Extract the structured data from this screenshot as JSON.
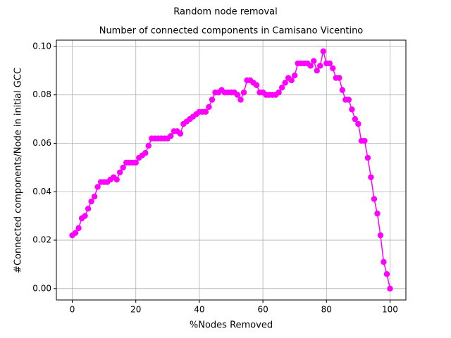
{
  "chart_data": {
    "type": "line",
    "suptitle": "Random node removal",
    "title": "Number of connected components in Camisano Vicentino",
    "xlabel": "%Nodes Removed",
    "ylabel": "#Connected components/Node in initial GCC",
    "x": [
      0,
      1,
      2,
      3,
      4,
      5,
      6,
      7,
      8,
      9,
      10,
      11,
      12,
      13,
      14,
      15,
      16,
      17,
      18,
      19,
      20,
      21,
      22,
      23,
      24,
      25,
      26,
      27,
      28,
      29,
      30,
      31,
      32,
      33,
      34,
      35,
      36,
      37,
      38,
      39,
      40,
      41,
      42,
      43,
      44,
      45,
      46,
      47,
      48,
      49,
      50,
      51,
      52,
      53,
      54,
      55,
      56,
      57,
      58,
      59,
      60,
      61,
      62,
      63,
      64,
      65,
      66,
      67,
      68,
      69,
      70,
      71,
      72,
      73,
      74,
      75,
      76,
      77,
      78,
      79,
      80,
      81,
      82,
      83,
      84,
      85,
      86,
      87,
      88,
      89,
      90,
      91,
      92,
      93,
      94,
      95,
      96,
      97,
      98,
      99,
      100
    ],
    "series": [
      {
        "name": "Random node removal",
        "color": "#ff00ff",
        "values": [
          0.022,
          0.023,
          0.025,
          0.029,
          0.03,
          0.033,
          0.036,
          0.038,
          0.042,
          0.044,
          0.044,
          0.044,
          0.045,
          0.046,
          0.045,
          0.048,
          0.05,
          0.052,
          0.052,
          0.052,
          0.052,
          0.054,
          0.055,
          0.056,
          0.059,
          0.062,
          0.062,
          0.062,
          0.062,
          0.062,
          0.062,
          0.063,
          0.065,
          0.065,
          0.064,
          0.068,
          0.069,
          0.07,
          0.071,
          0.072,
          0.073,
          0.073,
          0.073,
          0.075,
          0.078,
          0.081,
          0.081,
          0.082,
          0.081,
          0.081,
          0.081,
          0.081,
          0.08,
          0.078,
          0.081,
          0.086,
          0.086,
          0.085,
          0.084,
          0.081,
          0.081,
          0.08,
          0.08,
          0.08,
          0.08,
          0.081,
          0.083,
          0.085,
          0.087,
          0.086,
          0.088,
          0.093,
          0.093,
          0.093,
          0.093,
          0.092,
          0.094,
          0.09,
          0.092,
          0.098,
          0.093,
          0.093,
          0.091,
          0.087,
          0.087,
          0.082,
          0.078,
          0.078,
          0.074,
          0.07,
          0.068,
          0.061,
          0.061,
          0.054,
          0.046,
          0.037,
          0.031,
          0.022,
          0.011,
          0.006,
          0.0
        ]
      }
    ],
    "xlim": [
      -5,
      105
    ],
    "ylim": [
      -0.0047,
      0.1026
    ],
    "xticks": [
      0,
      20,
      40,
      60,
      80,
      100
    ],
    "yticks": [
      {
        "value": 0,
        "label": "0.00"
      },
      {
        "value": 0.02,
        "label": "0.02"
      },
      {
        "value": 0.04,
        "label": "0.04"
      },
      {
        "value": 0.06,
        "label": "0.06"
      },
      {
        "value": 0.08,
        "label": "0.08"
      },
      {
        "value": 0.1,
        "label": "0.10"
      }
    ],
    "grid": true
  }
}
